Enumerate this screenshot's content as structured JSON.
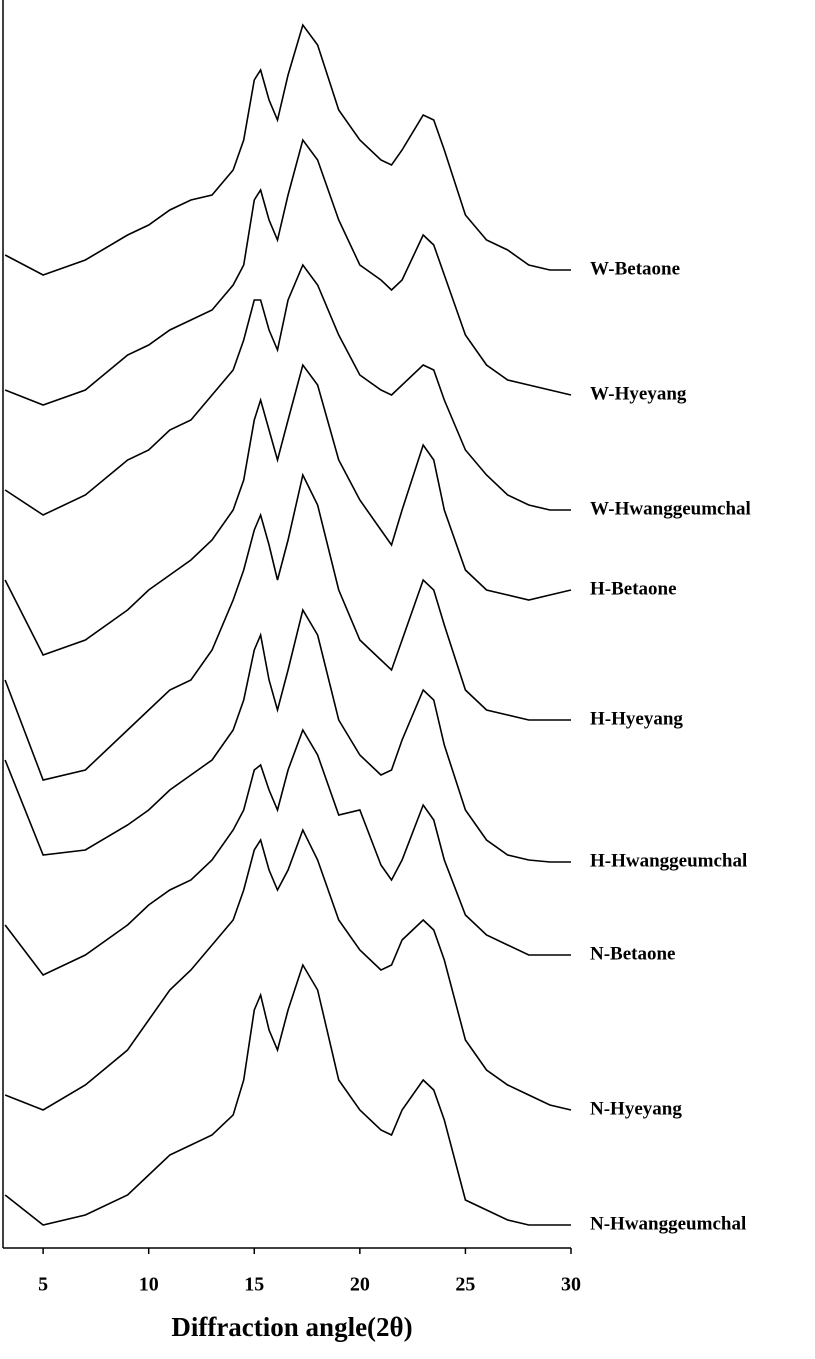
{
  "chart_data": {
    "type": "line",
    "xlabel": "Diffraction angle(2θ)",
    "x": [
      3.2,
      5,
      7,
      9,
      10,
      11,
      12,
      13,
      14,
      14.5,
      15,
      15.3,
      15.7,
      16.1,
      16.6,
      17.3,
      18,
      19,
      20,
      21,
      21.5,
      22,
      23,
      23.5,
      24,
      25,
      26,
      27,
      28,
      29,
      30
    ],
    "xlim": [
      3.1,
      30
    ],
    "xticks": [
      5,
      10,
      15,
      20,
      25,
      30
    ],
    "ylim": [
      0,
      1248
    ],
    "series": [
      {
        "name": "W-Betaone",
        "color": "#000000",
        "values": [
          993,
          973,
          988,
          1013,
          1023,
          1038,
          1048,
          1053,
          1078,
          1108,
          1168,
          1178,
          1148,
          1128,
          1173,
          1223,
          1203,
          1138,
          1108,
          1088,
          1083,
          1098,
          1133,
          1128,
          1098,
          1033,
          1008,
          998,
          983,
          978,
          978
        ]
      },
      {
        "name": "W-Hyeyang",
        "color": "#000000",
        "values": [
          858,
          843,
          858,
          893,
          903,
          918,
          928,
          938,
          963,
          983,
          1048,
          1058,
          1028,
          1008,
          1053,
          1108,
          1088,
          1028,
          983,
          968,
          958,
          968,
          1013,
          1003,
          973,
          913,
          883,
          868,
          863,
          858,
          853
        ]
      },
      {
        "name": "W-Hwanggeumchal",
        "color": "#000000",
        "values": [
          758,
          733,
          753,
          788,
          798,
          818,
          828,
          853,
          878,
          908,
          948,
          948,
          918,
          898,
          948,
          983,
          963,
          913,
          873,
          858,
          853,
          863,
          883,
          878,
          848,
          798,
          773,
          753,
          743,
          738,
          738
        ]
      },
      {
        "name": "H-Betaone",
        "color": "#000000",
        "values": [
          668,
          593,
          608,
          638,
          658,
          673,
          688,
          708,
          738,
          768,
          828,
          848,
          818,
          788,
          828,
          883,
          863,
          788,
          748,
          718,
          703,
          738,
          803,
          788,
          738,
          678,
          658,
          653,
          648,
          653,
          658
        ]
      },
      {
        "name": "H-Hyeyang",
        "color": "#000000",
        "values": [
          568,
          468,
          478,
          518,
          538,
          558,
          568,
          598,
          648,
          678,
          718,
          733,
          703,
          668,
          708,
          773,
          743,
          658,
          608,
          588,
          578,
          608,
          668,
          658,
          623,
          558,
          538,
          533,
          528,
          528,
          528
        ]
      },
      {
        "name": "H-Hwanggeumchal",
        "color": "#000000",
        "values": [
          488,
          393,
          398,
          423,
          438,
          458,
          473,
          488,
          518,
          548,
          598,
          613,
          568,
          538,
          578,
          638,
          613,
          528,
          493,
          473,
          478,
          508,
          558,
          548,
          503,
          438,
          408,
          393,
          388,
          386,
          386
        ]
      },
      {
        "name": "N-Betaone",
        "color": "#000000",
        "values": [
          323,
          273,
          293,
          323,
          343,
          358,
          368,
          388,
          418,
          438,
          478,
          483,
          458,
          438,
          478,
          518,
          493,
          433,
          438,
          383,
          368,
          388,
          443,
          428,
          388,
          333,
          313,
          303,
          293,
          293,
          293
        ]
      },
      {
        "name": "N-Hyeyang",
        "color": "#000000",
        "values": [
          153,
          138,
          163,
          198,
          228,
          258,
          278,
          303,
          328,
          358,
          398,
          408,
          378,
          358,
          378,
          418,
          388,
          328,
          298,
          278,
          283,
          308,
          328,
          318,
          288,
          208,
          178,
          163,
          153,
          143,
          138
        ]
      },
      {
        "name": "N-Hwanggeumchal",
        "color": "#000000",
        "values": [
          53,
          23,
          33,
          53,
          73,
          93,
          103,
          113,
          133,
          168,
          238,
          253,
          218,
          198,
          238,
          283,
          258,
          168,
          138,
          118,
          113,
          138,
          168,
          158,
          128,
          48,
          38,
          28,
          23,
          23,
          23
        ]
      }
    ]
  }
}
